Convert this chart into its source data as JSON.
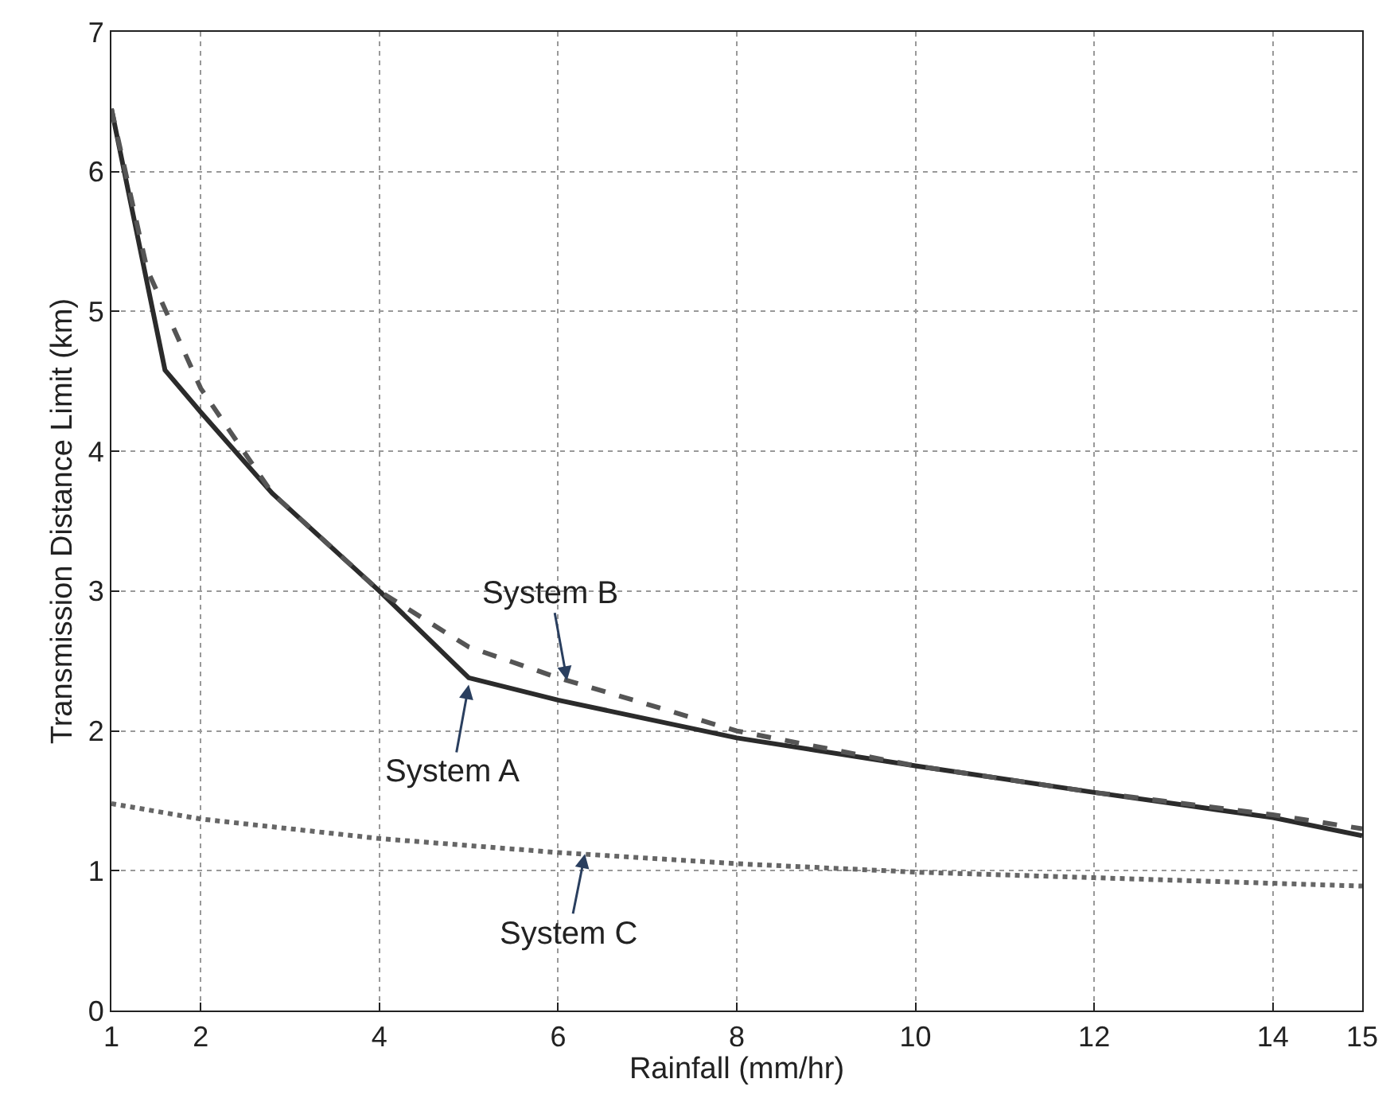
{
  "chart_data": {
    "type": "line",
    "xlabel": "Rainfall (mm/hr)",
    "ylabel": "Transmission Distance Limit (km)",
    "xlim": [
      1,
      15
    ],
    "xticks": [
      1,
      2,
      4,
      6,
      8,
      10,
      12,
      14,
      15
    ],
    "ylim": [
      0,
      7
    ],
    "yticks": [
      0,
      1,
      2,
      3,
      4,
      5,
      6,
      7
    ],
    "grid": true,
    "marker": "none",
    "series": [
      {
        "color": "#2b2b2b",
        "line_style": "solid",
        "x": [
          1,
          1.6,
          2,
          2.8,
          4,
          5,
          6,
          8,
          10,
          12,
          14,
          15
        ],
        "values": [
          6.45,
          4.58,
          4.28,
          3.7,
          3.0,
          2.38,
          2.22,
          1.95,
          1.75,
          1.56,
          1.38,
          1.25
        ]
      },
      {
        "color": "#555555",
        "line_style": "dashed",
        "x": [
          1,
          1.4,
          2,
          2.8,
          4,
          5,
          6,
          8,
          10,
          12,
          14,
          15
        ],
        "values": [
          6.45,
          5.3,
          4.45,
          3.7,
          3.0,
          2.6,
          2.38,
          2.0,
          1.75,
          1.56,
          1.4,
          1.3
        ]
      },
      {
        "color": "#666666",
        "line_style": "dotted",
        "x": [
          1,
          2,
          4,
          6,
          8,
          10,
          12,
          14,
          15
        ],
        "values": [
          1.48,
          1.37,
          1.23,
          1.13,
          1.05,
          0.99,
          0.95,
          0.91,
          0.89
        ]
      }
    ],
    "annotations": [
      {
        "text": "System B",
        "x": 6.1,
        "y": 2.36
      },
      {
        "text": "System A",
        "x": 5.0,
        "y": 2.33
      },
      {
        "text": "System C",
        "x": 6.3,
        "y": 1.12
      }
    ]
  }
}
